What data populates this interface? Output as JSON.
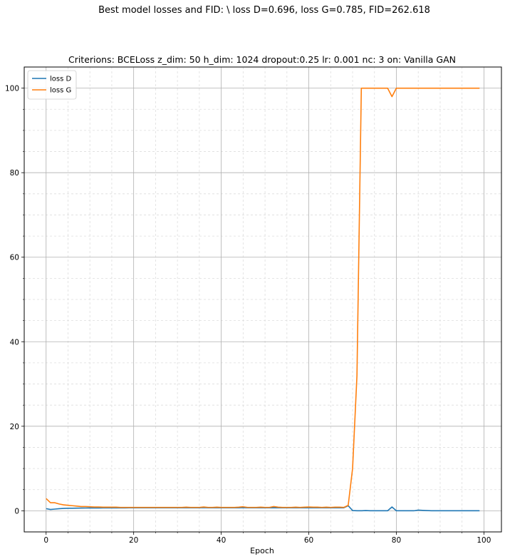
{
  "figure": {
    "suptitle": "Best model losses and FID:  \\ loss D=0.696, loss G=0.785, FID=262.618"
  },
  "chart_data": {
    "type": "line",
    "title": "Criterions: BCELoss  z_dim: 50 h_dim: 1024 dropout:0.25 lr: 0.001 nc: 3 on: Vanilla GAN",
    "xlabel": "Epoch",
    "ylabel": "",
    "xlim": [
      -5,
      104
    ],
    "ylim": [
      -5,
      105
    ],
    "x_ticks": [
      0,
      20,
      40,
      60,
      80,
      100
    ],
    "y_ticks": [
      0,
      20,
      40,
      60,
      80,
      100
    ],
    "grid": {
      "major": true,
      "minor": true
    },
    "legend_position": "top-left",
    "series": [
      {
        "name": "loss D",
        "color": "#1f77b4",
        "x": [
          0,
          1,
          2,
          3,
          4,
          5,
          6,
          7,
          8,
          9,
          10,
          11,
          12,
          13,
          14,
          15,
          16,
          17,
          18,
          19,
          20,
          21,
          22,
          23,
          24,
          25,
          26,
          27,
          28,
          29,
          30,
          31,
          32,
          33,
          34,
          35,
          36,
          37,
          38,
          39,
          40,
          41,
          42,
          43,
          44,
          45,
          46,
          47,
          48,
          49,
          50,
          51,
          52,
          53,
          54,
          55,
          56,
          57,
          58,
          59,
          60,
          61,
          62,
          63,
          64,
          65,
          66,
          67,
          68,
          69,
          70,
          71,
          72,
          73,
          74,
          75,
          76,
          77,
          78,
          79,
          80,
          81,
          82,
          83,
          84,
          85,
          86,
          87,
          88,
          89,
          90,
          91,
          92,
          93,
          94,
          95,
          96,
          97,
          98,
          99
        ],
        "values": [
          0.5,
          0.3,
          0.4,
          0.5,
          0.55,
          0.6,
          0.6,
          0.62,
          0.64,
          0.65,
          0.66,
          0.67,
          0.67,
          0.68,
          0.68,
          0.68,
          0.69,
          0.69,
          0.69,
          0.7,
          0.7,
          0.7,
          0.7,
          0.7,
          0.7,
          0.7,
          0.7,
          0.7,
          0.7,
          0.7,
          0.7,
          0.7,
          0.7,
          0.7,
          0.7,
          0.7,
          0.75,
          0.7,
          0.7,
          0.7,
          0.7,
          0.7,
          0.7,
          0.7,
          0.7,
          0.75,
          0.7,
          0.7,
          0.7,
          0.7,
          0.7,
          0.7,
          0.72,
          0.7,
          0.7,
          0.7,
          0.7,
          0.7,
          0.7,
          0.7,
          0.7,
          0.7,
          0.7,
          0.7,
          0.7,
          0.7,
          0.7,
          0.7,
          0.7,
          1.2,
          0.05,
          0.0,
          0.0,
          0.05,
          0.0,
          0.0,
          0.0,
          0.0,
          0.0,
          0.9,
          0.0,
          0.0,
          0.0,
          0.0,
          0.0,
          0.15,
          0.1,
          0.05,
          0.0,
          0.0,
          0.0,
          0.0,
          0.0,
          0.0,
          0.0,
          0.0,
          0.0,
          0.0,
          0.0,
          0.0
        ]
      },
      {
        "name": "loss G",
        "color": "#ff7f0e",
        "x": [
          0,
          1,
          2,
          3,
          4,
          5,
          6,
          7,
          8,
          9,
          10,
          11,
          12,
          13,
          14,
          15,
          16,
          17,
          18,
          19,
          20,
          21,
          22,
          23,
          24,
          25,
          26,
          27,
          28,
          29,
          30,
          31,
          32,
          33,
          34,
          35,
          36,
          37,
          38,
          39,
          40,
          41,
          42,
          43,
          44,
          45,
          46,
          47,
          48,
          49,
          50,
          51,
          52,
          53,
          54,
          55,
          56,
          57,
          58,
          59,
          60,
          61,
          62,
          63,
          64,
          65,
          66,
          67,
          68,
          69,
          70,
          71,
          72,
          73,
          74,
          75,
          76,
          77,
          78,
          79,
          80,
          81,
          82,
          83,
          84,
          85,
          86,
          87,
          88,
          89,
          90,
          91,
          92,
          93,
          94,
          95,
          96,
          97,
          98,
          99
        ],
        "values": [
          2.9,
          1.9,
          1.9,
          1.6,
          1.4,
          1.3,
          1.2,
          1.1,
          1.0,
          1.0,
          0.95,
          0.9,
          0.9,
          0.85,
          0.85,
          0.85,
          0.85,
          0.8,
          0.8,
          0.8,
          0.8,
          0.8,
          0.8,
          0.8,
          0.8,
          0.8,
          0.8,
          0.8,
          0.8,
          0.8,
          0.8,
          0.8,
          0.85,
          0.8,
          0.8,
          0.8,
          0.9,
          0.8,
          0.8,
          0.85,
          0.8,
          0.8,
          0.8,
          0.8,
          0.85,
          0.95,
          0.8,
          0.8,
          0.8,
          0.85,
          0.8,
          0.8,
          1.0,
          0.85,
          0.8,
          0.8,
          0.8,
          0.85,
          0.8,
          0.85,
          0.9,
          0.85,
          0.85,
          0.8,
          0.85,
          0.8,
          0.85,
          0.85,
          0.8,
          1.3,
          10.0,
          32.0,
          100.0,
          100.0,
          100.0,
          100.0,
          100.0,
          100.0,
          100.0,
          98.0,
          100.0,
          100.0,
          100.0,
          100.0,
          100.0,
          100.0,
          100.0,
          100.0,
          100.0,
          100.0,
          100.0,
          100.0,
          100.0,
          100.0,
          100.0,
          100.0,
          100.0,
          100.0,
          100.0,
          100.0
        ]
      }
    ]
  }
}
